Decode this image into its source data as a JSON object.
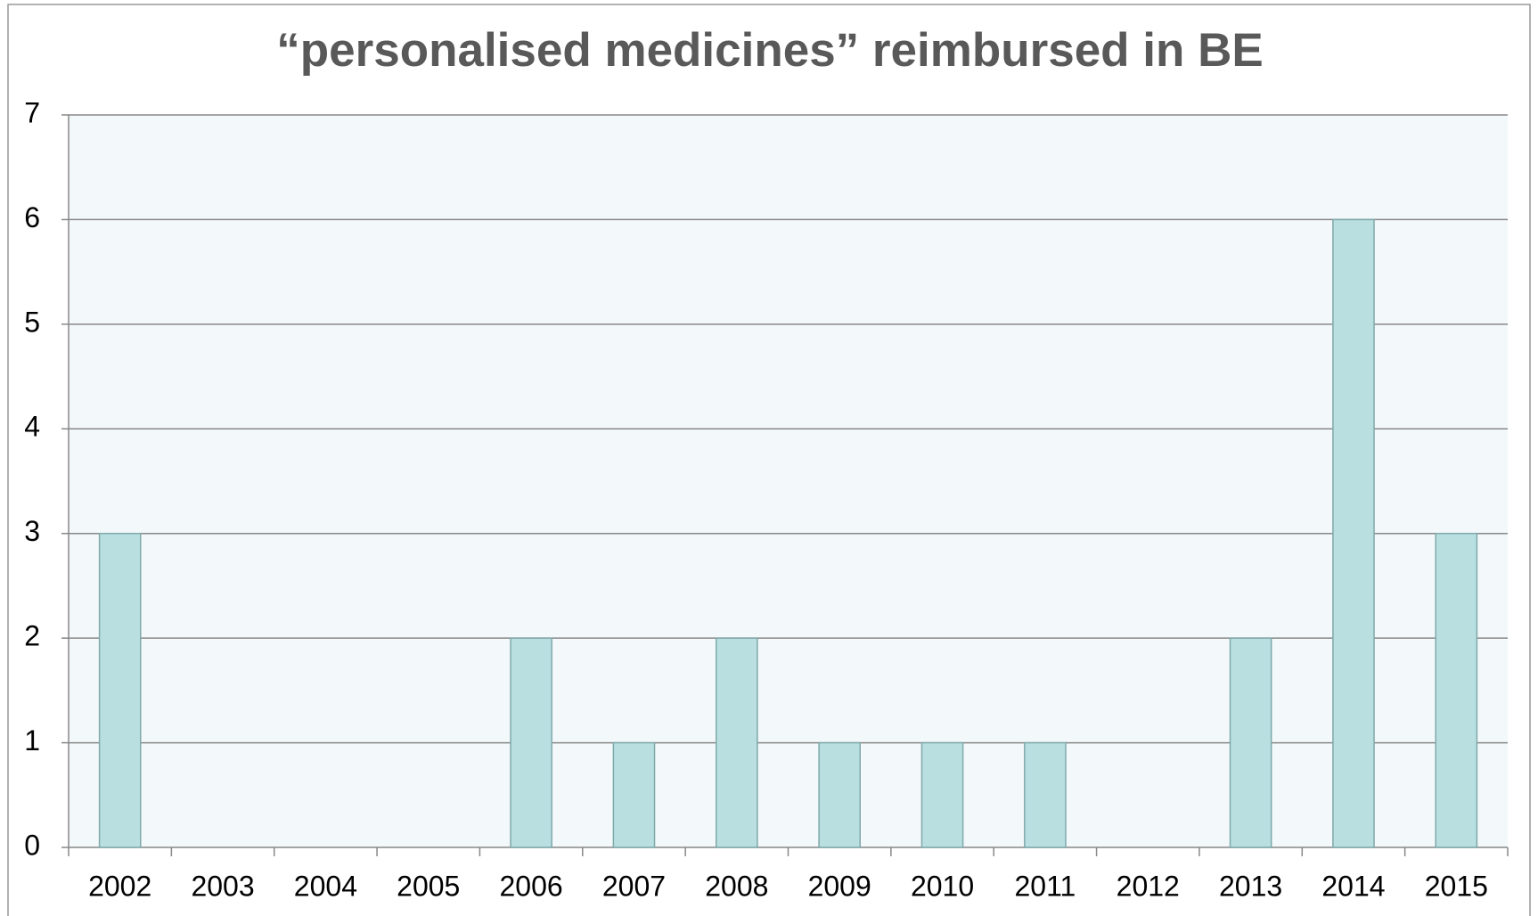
{
  "chart_data": {
    "type": "bar",
    "title": "“personalised medicines” reimbursed in BE",
    "categories": [
      "2002",
      "2003",
      "2004",
      "2005",
      "2006",
      "2007",
      "2008",
      "2009",
      "2010",
      "2011",
      "2012",
      "2013",
      "2014",
      "2015"
    ],
    "values": [
      3,
      0,
      0,
      0,
      2,
      1,
      2,
      1,
      1,
      1,
      0,
      2,
      6,
      3
    ],
    "color": "#b9dfe1",
    "ylim": [
      0,
      7
    ],
    "yticks": [
      0,
      1,
      2,
      3,
      4,
      5,
      6,
      7
    ],
    "grid": true
  }
}
